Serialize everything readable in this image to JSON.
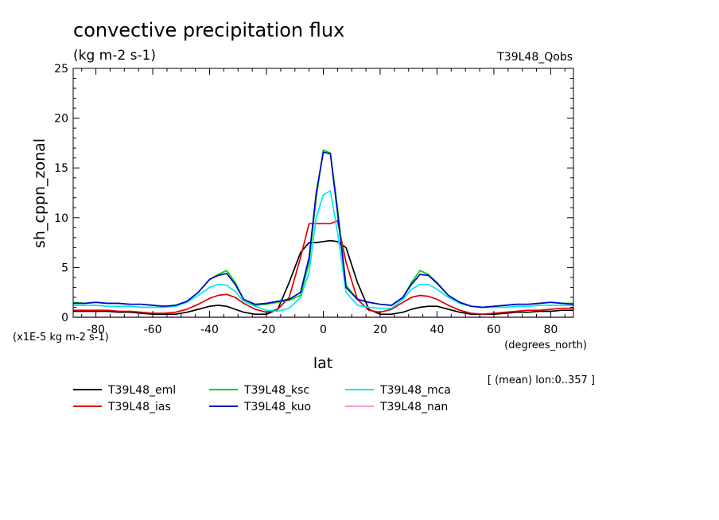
{
  "chart_data": {
    "type": "line",
    "title": "convective precipitation flux",
    "subtitle": "(kg m-2 s-1)",
    "dataset_label": "T39L48_Qobs",
    "ylabel": "sh_cppn_zonal",
    "xlabel": "lat",
    "x_units": "(degrees_north)",
    "y_scale_note": "(x1E-5 kg m-2 s-1)",
    "footnote": "[ (mean) lon:0..357 ]",
    "xlim": [
      -88,
      88
    ],
    "ylim": [
      0,
      25
    ],
    "x_ticks": [
      -80,
      -60,
      -40,
      -20,
      0,
      20,
      40,
      60,
      80
    ],
    "y_ticks": [
      0,
      5,
      10,
      15,
      20,
      25
    ],
    "x": [
      -88,
      -84,
      -80,
      -76,
      -72,
      -68,
      -64,
      -60,
      -56,
      -52,
      -48,
      -44,
      -40,
      -37,
      -34,
      -31,
      -28,
      -24,
      -20,
      -16,
      -12,
      -8,
      -5,
      -2.5,
      0,
      2.5,
      5,
      8,
      12,
      16,
      20,
      24,
      28,
      31,
      34,
      37,
      40,
      44,
      48,
      52,
      56,
      60,
      64,
      68,
      72,
      76,
      80,
      84,
      88
    ],
    "series": [
      {
        "name": "T39L48_eml",
        "color": "#000000",
        "values": [
          0.6,
          0.6,
          0.6,
          0.6,
          0.5,
          0.5,
          0.4,
          0.3,
          0.3,
          0.3,
          0.5,
          0.8,
          1.1,
          1.2,
          1.1,
          0.8,
          0.5,
          0.3,
          0.3,
          0.8,
          3.5,
          6.5,
          7.5,
          7.5,
          7.6,
          7.7,
          7.6,
          7,
          3.5,
          0.8,
          0.3,
          0.3,
          0.5,
          0.8,
          1.0,
          1.1,
          1.1,
          0.8,
          0.5,
          0.3,
          0.3,
          0.3,
          0.4,
          0.5,
          0.5,
          0.6,
          0.6,
          0.7,
          0.7
        ]
      },
      {
        "name": "T39L48_ias",
        "color": "#e00000",
        "values": [
          0.7,
          0.7,
          0.7,
          0.7,
          0.6,
          0.6,
          0.5,
          0.4,
          0.4,
          0.5,
          0.8,
          1.3,
          1.9,
          2.2,
          2.3,
          2.0,
          1.4,
          0.8,
          0.5,
          0.8,
          2.0,
          6.0,
          9.4,
          9.4,
          9.4,
          9.4,
          9.7,
          5.5,
          1.8,
          0.7,
          0.5,
          0.8,
          1.5,
          2.0,
          2.2,
          2.1,
          1.8,
          1.2,
          0.7,
          0.4,
          0.3,
          0.4,
          0.5,
          0.6,
          0.7,
          0.7,
          0.8,
          0.9,
          0.9
        ]
      },
      {
        "name": "T39L48_ksc",
        "color": "#00d000",
        "values": [
          1.5,
          1.4,
          1.5,
          1.4,
          1.4,
          1.3,
          1.3,
          1.2,
          1.1,
          1.2,
          1.6,
          2.5,
          3.8,
          4.3,
          4.7,
          3.5,
          1.8,
          1.2,
          1.3,
          1.5,
          1.7,
          2.2,
          5.5,
          12,
          16.8,
          16.5,
          11,
          3.2,
          1.8,
          1.5,
          1.3,
          1.2,
          2.0,
          3.5,
          4.7,
          4.3,
          3.5,
          2.2,
          1.5,
          1.1,
          1.0,
          1.1,
          1.2,
          1.3,
          1.3,
          1.4,
          1.5,
          1.4,
          1.4
        ]
      },
      {
        "name": "T39L48_kuo",
        "color": "#0000cc",
        "values": [
          1.4,
          1.4,
          1.5,
          1.4,
          1.4,
          1.3,
          1.3,
          1.2,
          1.1,
          1.2,
          1.6,
          2.5,
          3.8,
          4.2,
          4.4,
          3.3,
          1.8,
          1.3,
          1.4,
          1.6,
          1.8,
          2.5,
          6.0,
          12.5,
          16.6,
          16.4,
          10.5,
          3.0,
          1.8,
          1.5,
          1.3,
          1.2,
          2.0,
          3.3,
          4.3,
          4.2,
          3.4,
          2.2,
          1.5,
          1.1,
          1.0,
          1.1,
          1.2,
          1.3,
          1.3,
          1.4,
          1.5,
          1.4,
          1.3
        ]
      },
      {
        "name": "T39L48_mca",
        "color": "#00e8e8",
        "values": [
          1.2,
          1.2,
          1.2,
          1.1,
          1.1,
          1.1,
          1.0,
          1.0,
          1.0,
          1.1,
          1.5,
          2.2,
          3.0,
          3.3,
          3.2,
          2.6,
          1.6,
          1.1,
          0.7,
          0.6,
          0.9,
          2.0,
          4.5,
          10,
          12.3,
          12.7,
          8.5,
          2.5,
          1.2,
          1.0,
          0.9,
          0.9,
          1.8,
          2.8,
          3.3,
          3.3,
          2.8,
          2.0,
          1.4,
          1.1,
          1.0,
          1.0,
          1.0,
          1.1,
          1.1,
          1.2,
          1.2,
          1.2,
          1.2
        ]
      },
      {
        "name": "T39L48_nan",
        "color": "#e8a0e0",
        "values": [
          0,
          0,
          0,
          0,
          0,
          0,
          0,
          0,
          0,
          0,
          0,
          0,
          0,
          0,
          0,
          0,
          0,
          0,
          0,
          0,
          0,
          0,
          0,
          0,
          0,
          0,
          0,
          0,
          0,
          0,
          0,
          0,
          0,
          0,
          0,
          0,
          0,
          0,
          0,
          0,
          0,
          0,
          0,
          0,
          0,
          0,
          0,
          0,
          0
        ]
      }
    ],
    "legend_placement": "bottom",
    "grid": false
  }
}
